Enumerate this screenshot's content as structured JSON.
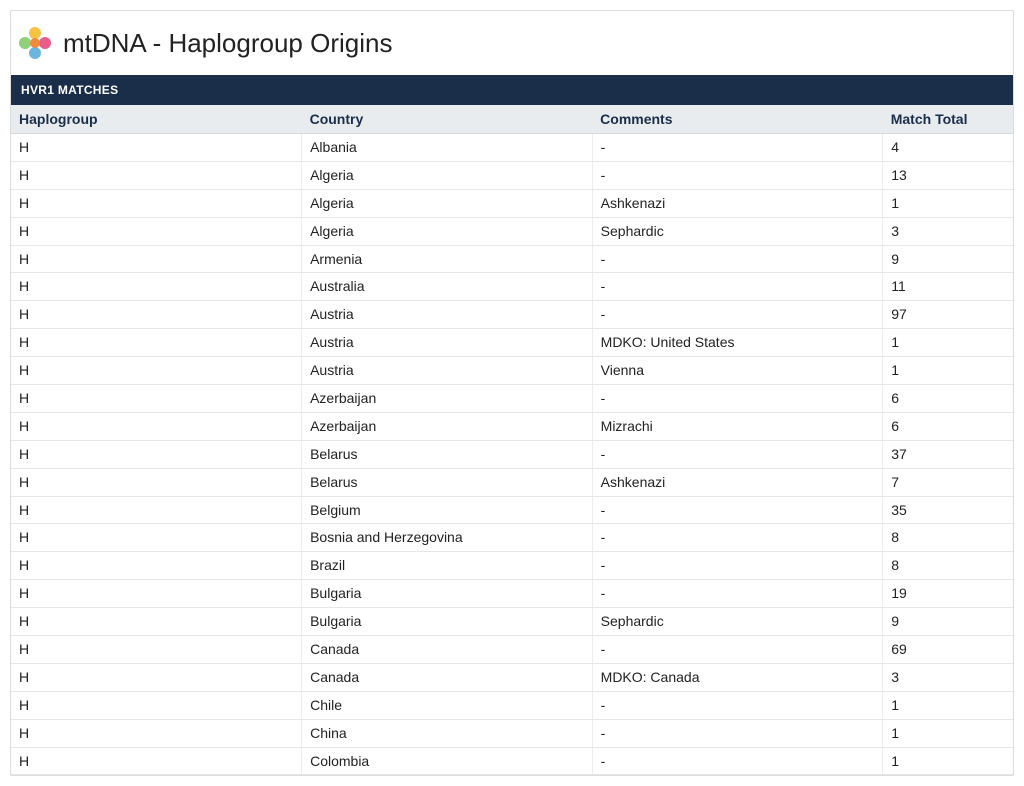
{
  "page": {
    "title": "mtDNA - Haplogroup Origins",
    "band_label": "HVR1 MATCHES"
  },
  "colors": {
    "band_bg": "#1a2e4a",
    "header_bg": "#e9ecef",
    "header_text": "#1a2e4a",
    "border": "#dddddd",
    "row_border": "#e6e6e6"
  },
  "logo": {
    "petals": [
      "#f6c244",
      "#e85d8b",
      "#6db5e1",
      "#8fd07a"
    ],
    "center": "#f08a3c"
  },
  "table": {
    "columns": [
      {
        "key": "haplo",
        "label": "Haplogroup",
        "width_pct": 29
      },
      {
        "key": "country",
        "label": "Country",
        "width_pct": 29
      },
      {
        "key": "comments",
        "label": "Comments",
        "width_pct": 29
      },
      {
        "key": "total",
        "label": "Match Total",
        "width_pct": 13
      }
    ],
    "rows": [
      [
        "H",
        "Albania",
        "-",
        "4"
      ],
      [
        "H",
        "Algeria",
        "-",
        "13"
      ],
      [
        "H",
        "Algeria",
        "Ashkenazi",
        "1"
      ],
      [
        "H",
        "Algeria",
        "Sephardic",
        "3"
      ],
      [
        "H",
        "Armenia",
        "-",
        "9"
      ],
      [
        "H",
        "Australia",
        "-",
        "11"
      ],
      [
        "H",
        "Austria",
        "-",
        "97"
      ],
      [
        "H",
        "Austria",
        "MDKO: United States",
        "1"
      ],
      [
        "H",
        "Austria",
        "Vienna",
        "1"
      ],
      [
        "H",
        "Azerbaijan",
        "-",
        "6"
      ],
      [
        "H",
        "Azerbaijan",
        "Mizrachi",
        "6"
      ],
      [
        "H",
        "Belarus",
        "-",
        "37"
      ],
      [
        "H",
        "Belarus",
        "Ashkenazi",
        "7"
      ],
      [
        "H",
        "Belgium",
        "-",
        "35"
      ],
      [
        "H",
        "Bosnia and Herzegovina",
        "-",
        "8"
      ],
      [
        "H",
        "Brazil",
        "-",
        "8"
      ],
      [
        "H",
        "Bulgaria",
        "-",
        "19"
      ],
      [
        "H",
        "Bulgaria",
        "Sephardic",
        "9"
      ],
      [
        "H",
        "Canada",
        "-",
        "69"
      ],
      [
        "H",
        "Canada",
        "MDKO: Canada",
        "3"
      ],
      [
        "H",
        "Chile",
        "-",
        "1"
      ],
      [
        "H",
        "China",
        "-",
        "1"
      ],
      [
        "H",
        "Colombia",
        "-",
        "1"
      ]
    ]
  }
}
